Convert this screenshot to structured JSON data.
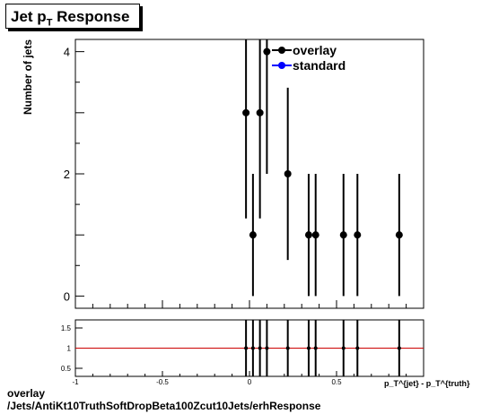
{
  "title": {
    "main": "Jet p",
    "sub": "T",
    "rest": " Response"
  },
  "footer": {
    "line1": "overlay",
    "line2": "/Jets/AntiKt10TruthSoftDropBeta100Zcut10Jets/erhResponse"
  },
  "chart_data": [
    {
      "type": "scatter",
      "ylabel": "Number of jets",
      "xlim": [
        -1,
        1
      ],
      "ylim": [
        -0.2,
        4.2
      ],
      "yticks": [
        0,
        2,
        4
      ],
      "legend": {
        "placement": "top-right",
        "entries": [
          {
            "name": "overlay",
            "color": "#000000"
          },
          {
            "name": "standard",
            "color": "#0000ff"
          }
        ]
      },
      "series": [
        {
          "name": "overlay",
          "x": [
            -0.02,
            0.02,
            0.06,
            0.1,
            0.22,
            0.34,
            0.38,
            0.54,
            0.62,
            0.86
          ],
          "y": [
            3,
            1,
            3,
            4,
            2,
            1,
            1,
            1,
            1,
            1
          ],
          "err": [
            1.73,
            1,
            1.73,
            2,
            1.41,
            1,
            1,
            1,
            1,
            1
          ]
        }
      ]
    },
    {
      "type": "scatter",
      "xlabel": "p_T^{jet} - p_T^{truth}",
      "xlim": [
        -1,
        1
      ],
      "ylim": [
        0.3,
        1.7
      ],
      "yticks": [
        0.5,
        1,
        1.5
      ],
      "xticks": [
        -1,
        -0.5,
        0,
        0.5
      ],
      "reference_line": 1,
      "x": [
        -0.02,
        0.02,
        0.06,
        0.1,
        0.22,
        0.34,
        0.38,
        0.54,
        0.62,
        0.86
      ],
      "y": [
        1,
        1,
        1,
        1,
        1,
        1,
        1,
        1,
        1,
        1
      ]
    }
  ]
}
